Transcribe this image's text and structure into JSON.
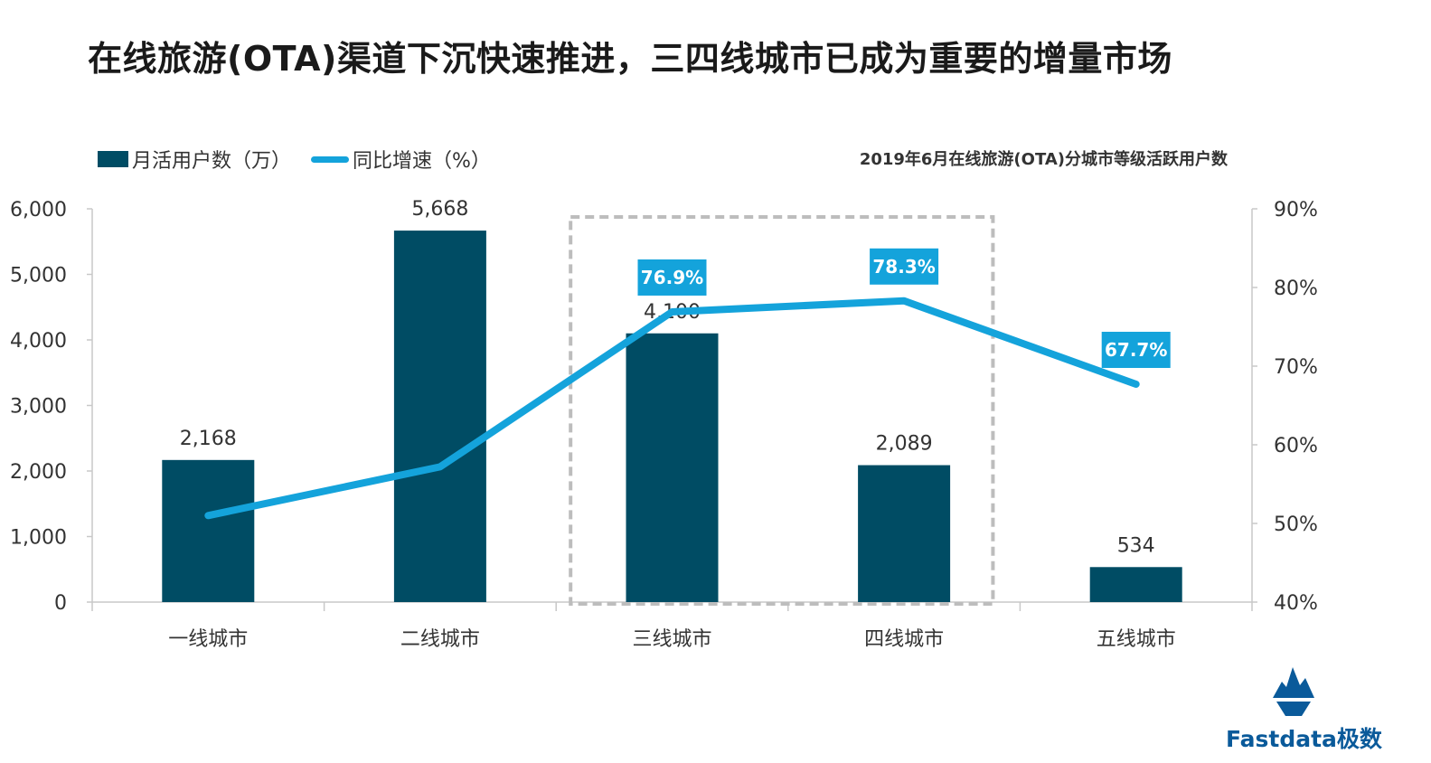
{
  "page": {
    "title": "在线旅游(OTA)渠道下沉快速推进，三四线城市已成为重要的增量市场",
    "subtitle": "2019年6月在线旅游(OTA)分城市等级活跃用户数",
    "brand": "Fastdata极数"
  },
  "colors": {
    "bar": "#004c64",
    "line": "#14a3db",
    "label_box": "#14a3db",
    "axis": "#c8c8c8",
    "highlight_box": "#bdbdbd"
  },
  "chart_data": {
    "type": "bar",
    "categories": [
      "一线城市",
      "二线城市",
      "三线城市",
      "四线城市",
      "五线城市"
    ],
    "series": [
      {
        "name": "月活用户数（万）",
        "type": "bar",
        "axis": "left",
        "values": [
          2168,
          5668,
          4100,
          2089,
          534
        ],
        "labels": [
          "2,168",
          "5,668",
          "4,100",
          "2,089",
          "534"
        ]
      },
      {
        "name": "同比增速（%）",
        "type": "line",
        "axis": "right",
        "values": [
          51,
          57.2,
          76.9,
          78.3,
          67.7
        ],
        "labels": [
          "",
          "",
          "76.9%",
          "78.3%",
          "67.7%"
        ]
      }
    ],
    "y_left": {
      "min": 0,
      "max": 6000,
      "ticks": [
        0,
        1000,
        2000,
        3000,
        4000,
        5000,
        6000
      ],
      "tick_labels": [
        "0",
        "1,000",
        "2,000",
        "3,000",
        "4,000",
        "5,000",
        "6,000"
      ]
    },
    "y_right": {
      "min": 40,
      "max": 90,
      "ticks": [
        40,
        50,
        60,
        70,
        80,
        90
      ],
      "tick_labels": [
        "40%",
        "50%",
        "60%",
        "70%",
        "80%",
        "90%"
      ]
    },
    "highlight_categories": [
      "三线城市",
      "四线城市"
    ],
    "legend_position": "top-left",
    "grid": false
  }
}
